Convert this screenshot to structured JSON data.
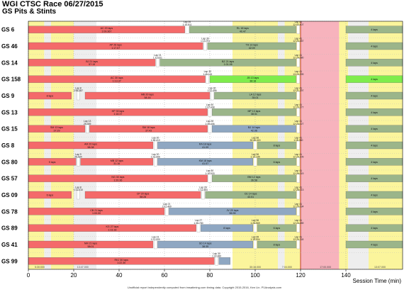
{
  "title": "WGI CTSC Race 06/27/2015",
  "subtitle": "GS Pits & Stints",
  "footer": "Unofficial report independently computed from imsatiming.com timing data. Copyright 2015-2016, Ken Lin. P1Analysis.com",
  "chart_data": {
    "type": "timeline",
    "xlabel": "Session Time (min)",
    "xlim": [
      0,
      165
    ],
    "xticks": [
      0,
      20,
      40,
      60,
      80,
      100,
      120,
      140
    ],
    "background_bands": [
      {
        "start": 0,
        "end": 7,
        "color": "#fbf59c"
      },
      {
        "start": 7,
        "end": 10,
        "color": "#eeeeee"
      },
      {
        "start": 10,
        "end": 20,
        "color": "#fbf59c"
      },
      {
        "start": 20,
        "end": 30,
        "color": "#eeeeee"
      },
      {
        "start": 90,
        "end": 110,
        "color": "#fbf59c"
      },
      {
        "start": 110,
        "end": 113,
        "color": "#eeeeee"
      },
      {
        "start": 113,
        "end": 120,
        "color": "#fbf59c"
      },
      {
        "start": 120,
        "end": 137,
        "color": "#f7b3bd"
      },
      {
        "start": 137,
        "end": 141,
        "color": "#fbf59c"
      },
      {
        "start": 141,
        "end": 150,
        "color": "#eeeeee"
      },
      {
        "start": 150,
        "end": 165,
        "color": "#fbf59c"
      }
    ],
    "band_labels": [
      {
        "x": 5,
        "text": "5:30:000"
      },
      {
        "x": 24,
        "text": "13:47.000"
      },
      {
        "x": 100,
        "text": "30:16.000"
      },
      {
        "x": 114,
        "text": "7:04.000"
      },
      {
        "x": 131,
        "text": "17:00.000"
      },
      {
        "x": 155,
        "text": "13:07.000"
      }
    ],
    "stint_colors": {
      "a": "#f46a6a",
      "b": "#8fa7c2",
      "c": "#9bb58a",
      "d": "#7fec4c"
    },
    "rows": [
      {
        "car": "GS 6",
        "stints": [
          {
            "start": 0,
            "end": 69,
            "color": "a",
            "label": "AC 20 laps",
            "sub": "1:09.367"
          },
          {
            "start": 71,
            "end": 118,
            "color": "c",
            "label": "RL 18 laps",
            "sub": "40.47"
          },
          {
            "start": 140,
            "end": 165,
            "color": "c",
            "label": "4 laps",
            "sub": ""
          }
        ],
        "pits": [
          {
            "x": 70,
            "label": "Lap 26",
            "time": "1:10.511"
          },
          {
            "x": 119,
            "label": "Lap 41",
            "time": "12:02.407"
          }
        ]
      },
      {
        "car": "GS 46",
        "stints": [
          {
            "start": 0,
            "end": 77,
            "color": "a",
            "label": "AP 26 laps",
            "sub": "1:17.07"
          },
          {
            "start": 79,
            "end": 118,
            "color": "c",
            "label": "TH 13 laps",
            "sub": "42:09"
          },
          {
            "start": 140,
            "end": 165,
            "color": "c",
            "label": "4 laps",
            "sub": ""
          }
        ],
        "pits": [
          {
            "x": 78,
            "label": "Lap 30",
            "time": "1:13.791"
          },
          {
            "x": 119,
            "label": "Lap 41",
            "time": "12:23.487"
          }
        ]
      },
      {
        "car": "GS 14",
        "stints": [
          {
            "start": 0,
            "end": 56,
            "color": "a",
            "label": "BJ 21 laps",
            "sub": "57:15"
          },
          {
            "start": 58,
            "end": 118,
            "color": "c",
            "label": "BZ 21 laps",
            "sub": "1:01.06"
          },
          {
            "start": 140,
            "end": 165,
            "color": "c",
            "label": "4 laps",
            "sub": ""
          }
        ],
        "pits": [
          {
            "x": 57,
            "label": "Lap 21",
            "time": "1:10.811"
          },
          {
            "x": 119,
            "label": "Lap 41",
            "time": "12:24.080"
          }
        ]
      },
      {
        "car": "GS 158",
        "stints": [
          {
            "start": 0,
            "end": 78,
            "color": "a",
            "label": "AC 30 laps",
            "sub": "1:13.37"
          },
          {
            "start": 80,
            "end": 118,
            "color": "d",
            "label": "JB 13 laps",
            "sub": "38:18"
          },
          {
            "start": 140,
            "end": 165,
            "color": "d",
            "label": "4 laps",
            "sub": ""
          }
        ],
        "pits": [
          {
            "x": 79,
            "label": "Lap 30",
            "time": "1:45.115"
          },
          {
            "x": 119,
            "label": "Lap 41",
            "time": "13:23.399"
          }
        ]
      },
      {
        "car": "GS 9",
        "stints": [
          {
            "start": 0,
            "end": 19,
            "color": "a",
            "label": "8 laps",
            "sub": ""
          },
          {
            "start": 25,
            "end": 80,
            "color": "a",
            "label": "MB 20 laps",
            "sub": "58.16"
          },
          {
            "start": 82,
            "end": 118,
            "color": "c",
            "label": "LA 12 laps",
            "sub": "35.01"
          },
          {
            "start": 140,
            "end": 165,
            "color": "c",
            "label": "4 laps",
            "sub": ""
          }
        ],
        "pits": [
          {
            "x": 22,
            "label": "Lap 8",
            "time": "2:55.387"
          },
          {
            "x": 81,
            "label": "Lap 30",
            "time": "1:11.456"
          },
          {
            "x": 119,
            "label": "Lap 41",
            "time": "12:21.297"
          }
        ]
      },
      {
        "car": "GS 13",
        "stints": [
          {
            "start": 0,
            "end": 79,
            "color": "a",
            "label": "HP 30 laps",
            "sub": "1:18.37"
          },
          {
            "start": 81,
            "end": 118,
            "color": "c",
            "label": "MP 13 laps",
            "sub": "38:31"
          },
          {
            "start": 140,
            "end": 165,
            "color": "c",
            "label": "4 laps",
            "sub": ""
          }
        ],
        "pits": [
          {
            "x": 80,
            "label": "Lap 30",
            "time": "1:07.498"
          },
          {
            "x": 119,
            "label": "Lap 41",
            "time": "12:23.277"
          }
        ]
      },
      {
        "car": "GS 15",
        "stints": [
          {
            "start": 0,
            "end": 25,
            "color": "a",
            "label": "SM 13 laps",
            "sub": "37:29"
          },
          {
            "start": 27,
            "end": 79,
            "color": "a",
            "label": "SM 18 laps",
            "sub": "37:43"
          },
          {
            "start": 81,
            "end": 118,
            "color": "b",
            "label": "BJ 14 laps",
            "sub": "42.06"
          },
          {
            "start": 140,
            "end": 165,
            "color": "c",
            "label": "4 laps",
            "sub": ""
          }
        ],
        "pits": [
          {
            "x": 26,
            "label": "Lap 13",
            "time": "25.009"
          },
          {
            "x": 80,
            "label": "Lap 28",
            "time": "1:39.406"
          },
          {
            "x": 119,
            "label": "Lap 41",
            "time": "12:24.027"
          }
        ]
      },
      {
        "car": "GS 8",
        "stints": [
          {
            "start": 0,
            "end": 55,
            "color": "a",
            "label": "AM 20 laps",
            "sub": "58.38"
          },
          {
            "start": 57,
            "end": 99,
            "color": "b",
            "label": "RA 18 laps",
            "sub": "41.09"
          },
          {
            "start": 101,
            "end": 118,
            "color": "c",
            "label": "8 laps",
            "sub": ""
          },
          {
            "start": 140,
            "end": 165,
            "color": "c",
            "label": "4 laps",
            "sub": ""
          }
        ],
        "pits": [
          {
            "x": 56,
            "label": "Lap 20",
            "time": "1:36.410"
          },
          {
            "x": 100,
            "label": "Lap 36",
            "time": "30:40.415"
          },
          {
            "x": 119,
            "label": "Lap 41",
            "time": "1:16.330"
          }
        ]
      },
      {
        "car": "GS 80",
        "stints": [
          {
            "start": 0,
            "end": 21,
            "color": "a",
            "label": "9 laps",
            "sub": ""
          },
          {
            "start": 23,
            "end": 55,
            "color": "a",
            "label": "MB 12 laps",
            "sub": "31.16"
          },
          {
            "start": 57,
            "end": 99,
            "color": "b",
            "label": "KM 18 laps",
            "sub": "41.07"
          },
          {
            "start": 101,
            "end": 118,
            "color": "c",
            "label": "6 laps",
            "sub": ""
          },
          {
            "start": 140,
            "end": 165,
            "color": "c",
            "label": "4 laps",
            "sub": ""
          }
        ],
        "pits": [
          {
            "x": 22,
            "label": "Lap 9",
            "time": "25.434"
          },
          {
            "x": 56,
            "label": "Lap 20",
            "time": "1:23.066"
          },
          {
            "x": 100,
            "label": "Lap 36",
            "time": "1:10.185"
          },
          {
            "x": 119,
            "label": "Lap 41",
            "time": "12:24.109"
          }
        ]
      },
      {
        "car": "GS 57",
        "stints": [
          {
            "start": 0,
            "end": 79,
            "color": "a",
            "label": "NG 30 laps",
            "sub": "1:20.36"
          },
          {
            "start": 81,
            "end": 118,
            "color": "c",
            "label": "BM 12 laps",
            "sub": "36.58"
          },
          {
            "start": 140,
            "end": 165,
            "color": "c",
            "label": "4 laps",
            "sub": ""
          }
        ],
        "pits": [
          {
            "x": 80,
            "label": "Lap 30",
            "time": "1:10.933"
          },
          {
            "x": 119,
            "label": "Lap 41",
            "time": "12:26.019"
          }
        ]
      },
      {
        "car": "GS 09",
        "stints": [
          {
            "start": 0,
            "end": 19,
            "color": "a",
            "label": "6 laps",
            "sub": ""
          },
          {
            "start": 25,
            "end": 76,
            "color": "a",
            "label": "CP 20 laps",
            "sub": "58:28"
          },
          {
            "start": 78,
            "end": 118,
            "color": "c",
            "label": "CE 14 laps",
            "sub": "43.51"
          },
          {
            "start": 140,
            "end": 165,
            "color": "c",
            "label": "4 laps",
            "sub": ""
          }
        ],
        "pits": [
          {
            "x": 22,
            "label": "Lap 8",
            "time": "1:11.010"
          },
          {
            "x": 77,
            "label": "Lap 28",
            "time": "1:11.984"
          },
          {
            "x": 119,
            "label": "Lap 41",
            "time": "12:28.013"
          }
        ]
      },
      {
        "car": "GS 78",
        "stints": [
          {
            "start": 0,
            "end": 60,
            "color": "a",
            "label": "CB 21 laps",
            "sub": "1:00.00"
          },
          {
            "start": 62,
            "end": 118,
            "color": "b",
            "label": "JV 20 laps",
            "sub": "56:35"
          },
          {
            "start": 140,
            "end": 165,
            "color": "c",
            "label": "4 laps",
            "sub": ""
          }
        ],
        "pits": [
          {
            "x": 61,
            "label": "Lap 21",
            "time": "2:21.469"
          },
          {
            "x": 119,
            "label": "Lap 41",
            "time": "12:25.034"
          }
        ]
      },
      {
        "car": "GS 89",
        "stints": [
          {
            "start": 0,
            "end": 74,
            "color": "a",
            "label": "KG 27 laps",
            "sub": "1:13.18"
          },
          {
            "start": 76,
            "end": 99,
            "color": "b",
            "label": "8 laps",
            "sub": ""
          },
          {
            "start": 101,
            "end": 118,
            "color": "c",
            "label": "6 laps",
            "sub": ""
          },
          {
            "start": 140,
            "end": 165,
            "color": "c",
            "label": "4 laps",
            "sub": ""
          }
        ],
        "pits": [
          {
            "x": 75,
            "label": "Lap 27",
            "time": "1:35.780"
          },
          {
            "x": 100,
            "label": "Lap 36",
            "time": "1:25.969"
          },
          {
            "x": 119,
            "label": "Lap 41",
            "time": "12:23.489"
          }
        ]
      },
      {
        "car": "GS 41",
        "stints": [
          {
            "start": 0,
            "end": 55,
            "color": "a",
            "label": "NM 21 laps",
            "sub": "58:01"
          },
          {
            "start": 57,
            "end": 99,
            "color": "b",
            "label": "SD 14 laps",
            "sub": "38:35"
          },
          {
            "start": 101,
            "end": 118,
            "color": "c",
            "label": "8 laps",
            "sub": ""
          },
          {
            "start": 140,
            "end": 165,
            "color": "c",
            "label": "4 laps",
            "sub": ""
          }
        ],
        "pits": [
          {
            "x": 56,
            "label": "Lap 21",
            "time": "1:21.000"
          },
          {
            "x": 100,
            "label": "Lap 35",
            "time": "1:19.904"
          },
          {
            "x": 119,
            "label": "Lap 41",
            "time": "12:24.118"
          }
        ]
      },
      {
        "car": "GS 99",
        "stints": [
          {
            "start": 0,
            "end": 82,
            "color": "a",
            "label": "RKJ 30 laps",
            "sub": "1:22.30"
          },
          {
            "start": 84,
            "end": 89,
            "color": "b",
            "label": "",
            "sub": ""
          }
        ],
        "pits": [
          {
            "x": 83,
            "label": "Lap 30",
            "time": "1:22.380"
          }
        ]
      }
    ]
  }
}
